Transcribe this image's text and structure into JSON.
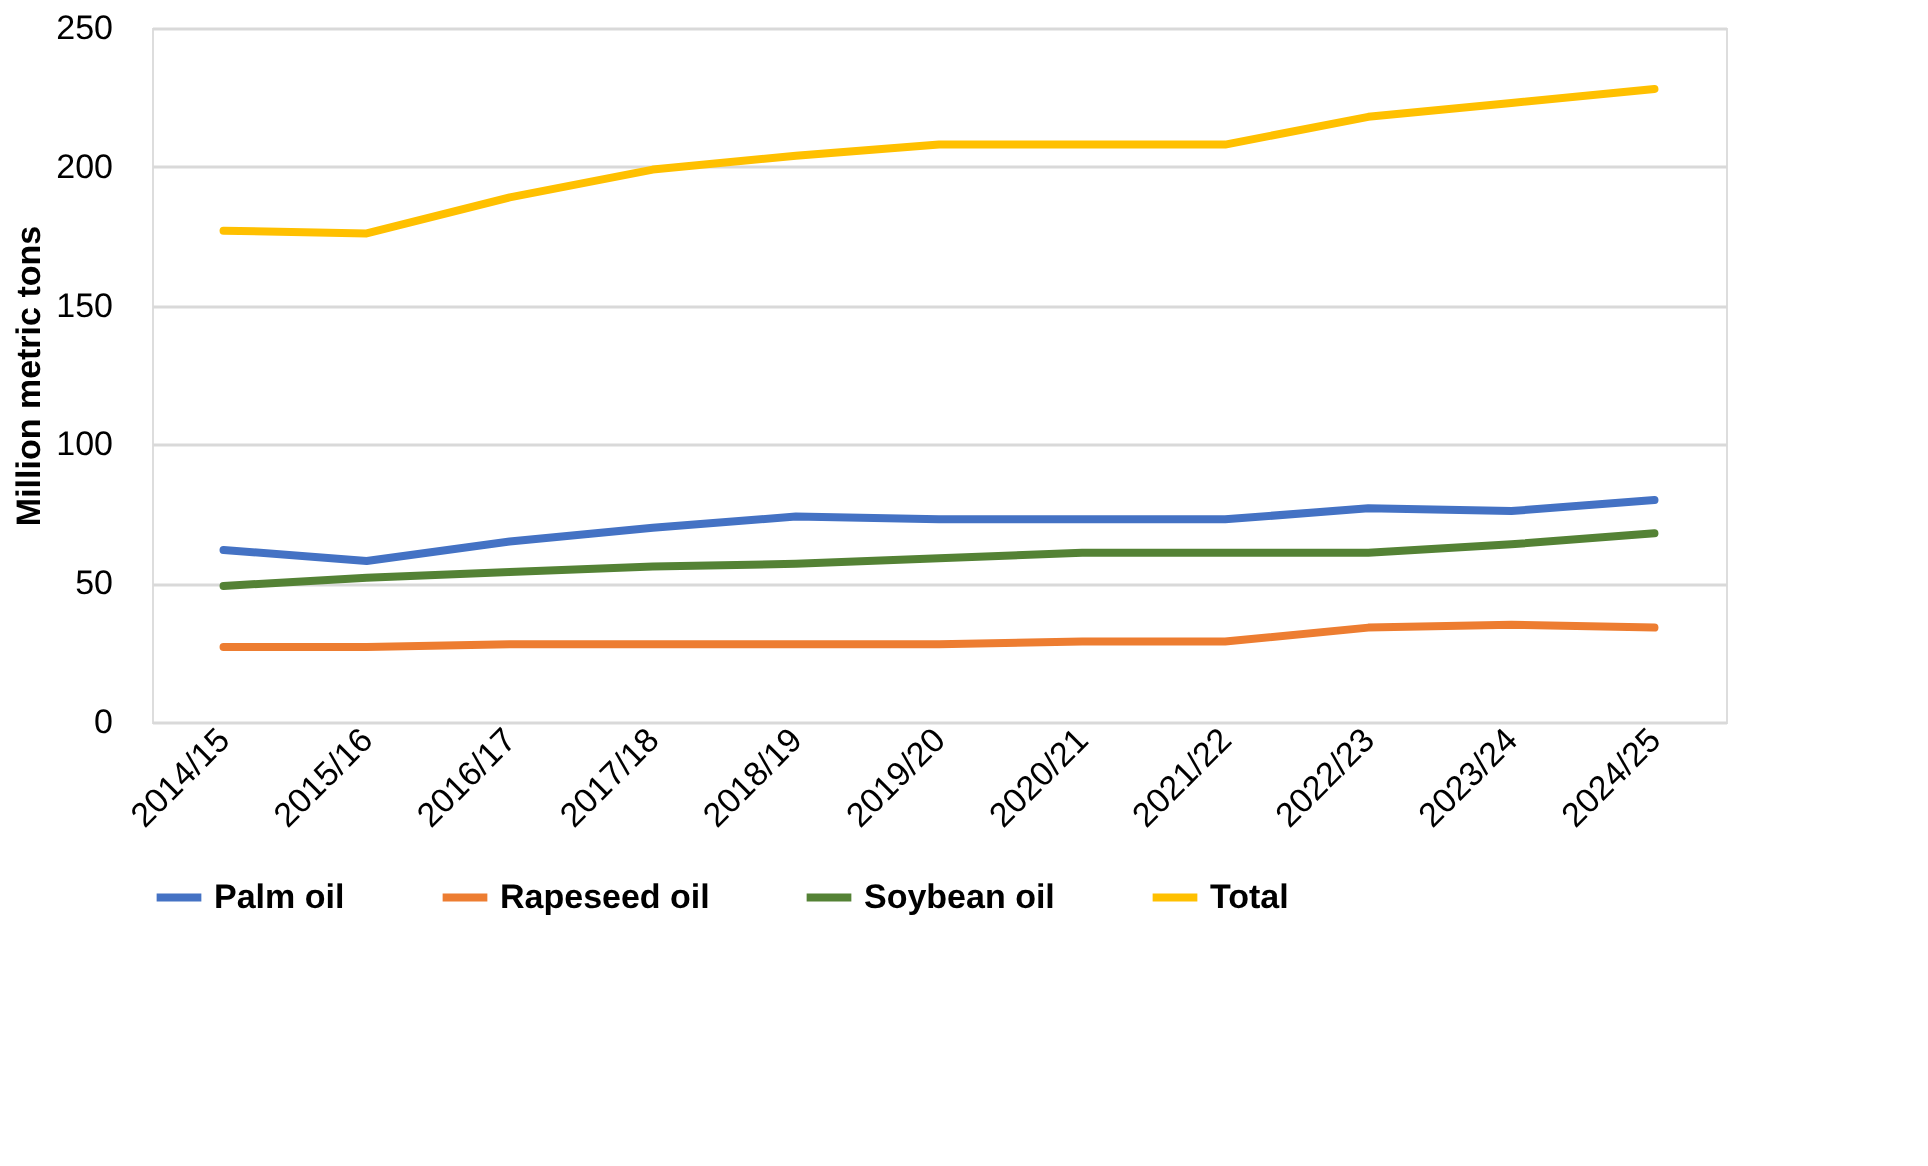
{
  "chart_data": {
    "type": "line",
    "ylabel": "Million metric tons",
    "categories": [
      "2014/15",
      "2015/16",
      "2016/17",
      "2017/18",
      "2018/19",
      "2019/20",
      "2020/21",
      "2021/22",
      "2022/23",
      "2023/24",
      "2024/25"
    ],
    "series": [
      {
        "name": "Palm oil",
        "color": "#4472c4",
        "values": [
          62,
          58,
          65,
          70,
          74,
          73,
          73,
          73,
          77,
          76,
          80
        ]
      },
      {
        "name": "Rapeseed oil",
        "color": "#ed7d31",
        "values": [
          27,
          27,
          28,
          28,
          28,
          28,
          29,
          29,
          34,
          35,
          34
        ]
      },
      {
        "name": "Soybean oil",
        "color": "#548235",
        "values": [
          49,
          52,
          54,
          56,
          57,
          59,
          61,
          61,
          61,
          64,
          68
        ]
      },
      {
        "name": "Total",
        "color": "#ffc000",
        "values": [
          177,
          176,
          189,
          199,
          204,
          208,
          208,
          208,
          218,
          223,
          228
        ]
      }
    ],
    "ylim": [
      0,
      250
    ],
    "yticks": [
      0,
      50,
      100,
      150,
      200,
      250
    ],
    "grid": "y",
    "legend": "bottom",
    "marker": "none",
    "line_style": "solid"
  }
}
